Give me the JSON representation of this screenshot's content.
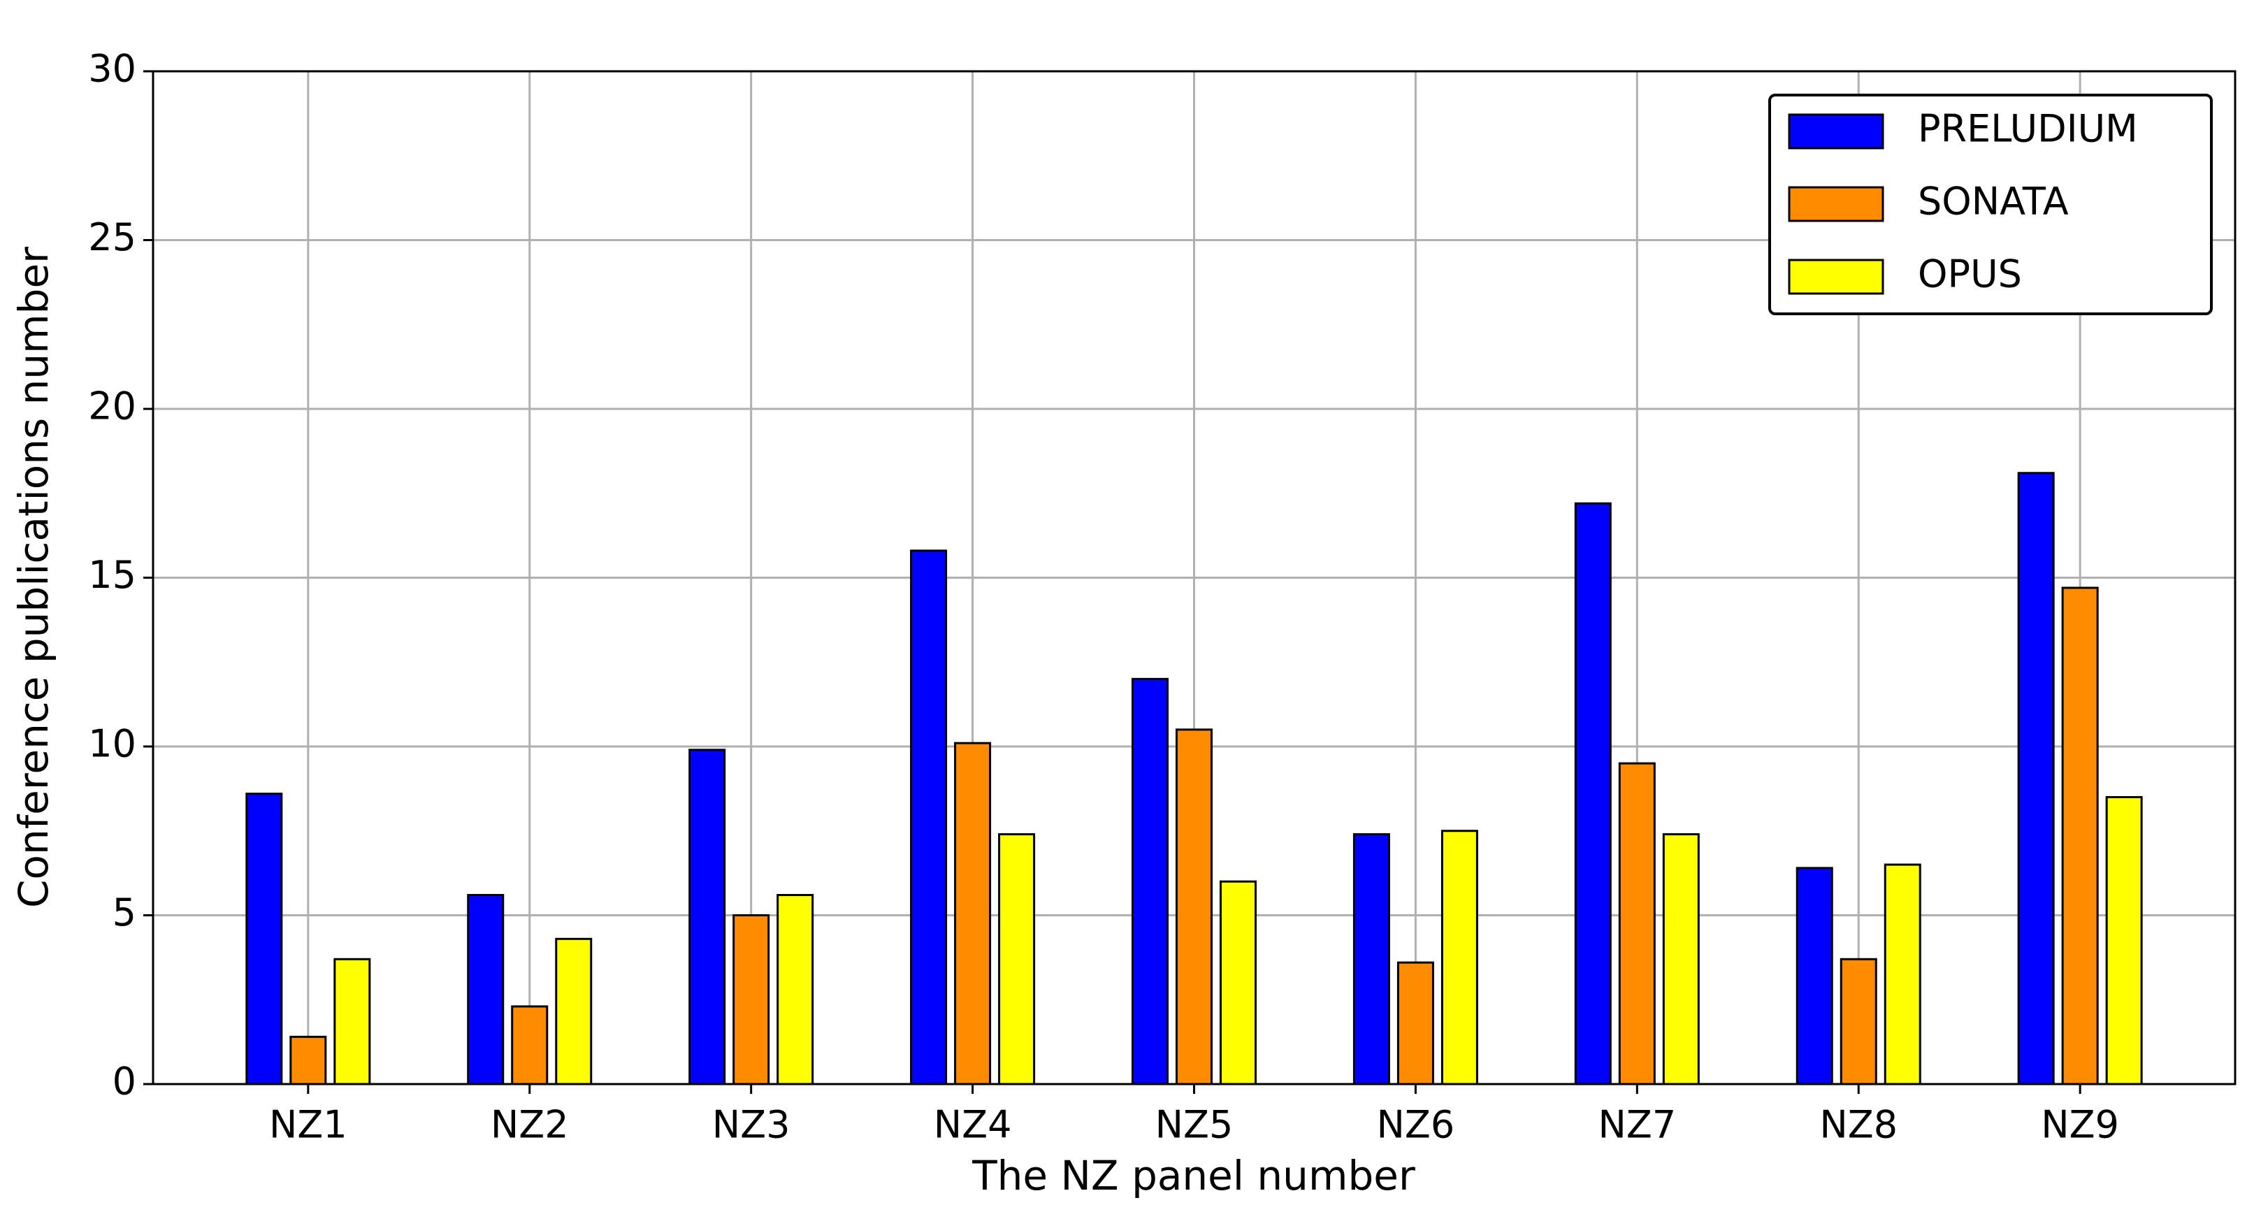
{
  "chart_data": {
    "type": "bar",
    "xlabel": "The NZ panel number",
    "ylabel": "Conference publications number",
    "categories": [
      "NZ1",
      "NZ2",
      "NZ3",
      "NZ4",
      "NZ5",
      "NZ6",
      "NZ7",
      "NZ8",
      "NZ9"
    ],
    "series": [
      {
        "name": "PRELUDIUM",
        "color": "#0000ff",
        "values": [
          8.6,
          5.6,
          9.9,
          15.8,
          12.0,
          7.4,
          17.2,
          6.4,
          18.1
        ]
      },
      {
        "name": "SONATA",
        "color": "#ff8c00",
        "values": [
          1.4,
          2.3,
          5.0,
          10.1,
          10.5,
          3.6,
          9.5,
          3.7,
          14.7
        ]
      },
      {
        "name": "OPUS",
        "color": "#ffff00",
        "values": [
          3.7,
          4.3,
          5.6,
          7.4,
          6.0,
          7.5,
          7.4,
          6.5,
          8.5
        ]
      }
    ],
    "ylim": [
      0,
      30
    ],
    "yticks": [
      0,
      5,
      10,
      15,
      20,
      25,
      30
    ],
    "grid": true,
    "legend": "upper right"
  }
}
